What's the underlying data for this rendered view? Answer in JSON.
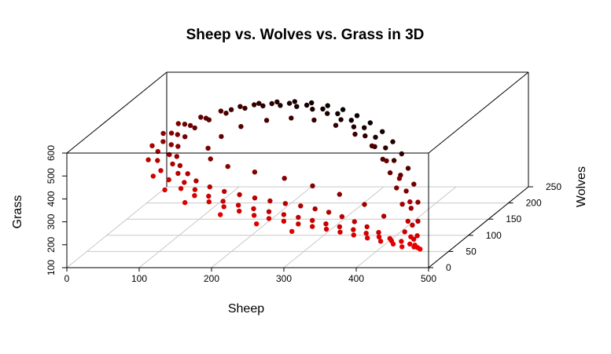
{
  "chart_data": {
    "type": "scatter",
    "title": "Sheep vs. Wolves vs. Grass in 3D",
    "xlabel": "Sheep",
    "ylabel": "Wolves",
    "zlabel": "Grass",
    "xlim": [
      0,
      500
    ],
    "ylim": [
      0,
      250
    ],
    "zlim": [
      100,
      600
    ],
    "x_ticks": [
      "0",
      "100",
      "200",
      "300",
      "400",
      "500"
    ],
    "y_ticks": [
      "0",
      "50",
      "100",
      "150",
      "200",
      "250"
    ],
    "z_ticks": [
      "100",
      "200",
      "300",
      "400",
      "500",
      "600"
    ],
    "grid": true,
    "color_encoding": "wolves",
    "color_low": "#ff0000",
    "color_high": "#000000",
    "series": [
      {
        "points": [
          [
            470,
            20,
            170
          ],
          [
            455,
            15,
            170
          ],
          [
            440,
            20,
            175
          ],
          [
            420,
            25,
            180
          ],
          [
            400,
            28,
            190
          ],
          [
            380,
            30,
            200
          ],
          [
            360,
            32,
            210
          ],
          [
            340,
            34,
            220
          ],
          [
            320,
            35,
            230
          ],
          [
            300,
            36,
            240
          ],
          [
            280,
            36,
            252
          ],
          [
            260,
            35,
            265
          ],
          [
            240,
            34,
            280
          ],
          [
            220,
            33,
            300
          ],
          [
            200,
            31,
            322
          ],
          [
            180,
            30,
            345
          ],
          [
            160,
            30,
            372
          ],
          [
            140,
            32,
            400
          ],
          [
            120,
            38,
            430
          ],
          [
            105,
            45,
            460
          ],
          [
            95,
            55,
            490
          ],
          [
            90,
            65,
            515
          ],
          [
            90,
            78,
            540
          ],
          [
            95,
            90,
            560
          ],
          [
            105,
            105,
            578
          ],
          [
            120,
            118,
            590
          ],
          [
            140,
            132,
            597
          ],
          [
            160,
            144,
            600
          ],
          [
            180,
            155,
            598
          ],
          [
            200,
            164,
            592
          ],
          [
            220,
            172,
            582
          ],
          [
            240,
            178,
            568
          ],
          [
            260,
            182,
            550
          ],
          [
            280,
            184,
            530
          ],
          [
            300,
            183,
            505
          ],
          [
            320,
            180,
            478
          ],
          [
            340,
            174,
            448
          ],
          [
            360,
            164,
            418
          ],
          [
            380,
            150,
            385
          ],
          [
            400,
            130,
            350
          ],
          [
            420,
            108,
            312
          ],
          [
            440,
            82,
            270
          ],
          [
            455,
            55,
            225
          ],
          [
            465,
            35,
            190
          ],
          [
            430,
            30,
            185
          ],
          [
            410,
            38,
            200
          ],
          [
            390,
            45,
            215
          ],
          [
            370,
            50,
            230
          ],
          [
            350,
            55,
            245
          ],
          [
            330,
            58,
            260
          ],
          [
            310,
            60,
            272
          ],
          [
            290,
            60,
            285
          ],
          [
            270,
            58,
            298
          ],
          [
            250,
            56,
            312
          ],
          [
            230,
            54,
            328
          ],
          [
            210,
            52,
            345
          ],
          [
            190,
            50,
            362
          ],
          [
            170,
            50,
            382
          ],
          [
            150,
            52,
            405
          ],
          [
            135,
            58,
            428
          ],
          [
            120,
            66,
            452
          ],
          [
            110,
            76,
            478
          ],
          [
            105,
            88,
            505
          ],
          [
            108,
            100,
            530
          ],
          [
            115,
            112,
            552
          ],
          [
            128,
            124,
            570
          ],
          [
            145,
            136,
            582
          ],
          [
            165,
            147,
            588
          ],
          [
            185,
            156,
            586
          ],
          [
            205,
            163,
            578
          ],
          [
            225,
            168,
            566
          ],
          [
            245,
            171,
            550
          ],
          [
            265,
            172,
            530
          ],
          [
            285,
            170,
            506
          ],
          [
            305,
            166,
            480
          ],
          [
            325,
            158,
            452
          ],
          [
            345,
            146,
            422
          ],
          [
            365,
            130,
            390
          ],
          [
            385,
            112,
            356
          ],
          [
            405,
            92,
            318
          ],
          [
            425,
            70,
            278
          ],
          [
            445,
            48,
            235
          ],
          [
            460,
            28,
            195
          ],
          [
            470,
            18,
            165
          ],
          [
            462,
            22,
            172
          ],
          [
            448,
            26,
            178
          ],
          [
            435,
            25,
            182
          ],
          [
            415,
            30,
            192
          ],
          [
            395,
            34,
            202
          ],
          [
            375,
            38,
            212
          ],
          [
            355,
            40,
            222
          ],
          [
            335,
            42,
            232
          ],
          [
            315,
            44,
            244
          ],
          [
            295,
            45,
            256
          ],
          [
            275,
            45,
            268
          ],
          [
            255,
            44,
            282
          ],
          [
            235,
            42,
            298
          ],
          [
            215,
            40,
            316
          ],
          [
            195,
            38,
            336
          ],
          [
            175,
            38,
            358
          ],
          [
            155,
            40,
            384
          ],
          [
            138,
            44,
            410
          ],
          [
            125,
            52,
            438
          ],
          [
            112,
            62,
            465
          ],
          [
            102,
            72,
            492
          ],
          [
            98,
            84,
            518
          ],
          [
            100,
            96,
            545
          ],
          [
            110,
            110,
            565
          ],
          [
            125,
            122,
            580
          ],
          [
            150,
            140,
            592
          ],
          [
            175,
            152,
            596
          ],
          [
            195,
            160,
            590
          ],
          [
            215,
            168,
            580
          ],
          [
            235,
            175,
            562
          ],
          [
            255,
            179,
            540
          ],
          [
            275,
            180,
            518
          ],
          [
            295,
            178,
            492
          ],
          [
            315,
            174,
            465
          ],
          [
            335,
            166,
            435
          ],
          [
            355,
            155,
            404
          ],
          [
            375,
            140,
            370
          ],
          [
            395,
            120,
            334
          ],
          [
            415,
            98,
            296
          ],
          [
            435,
            74,
            255
          ],
          [
            450,
            50,
            215
          ],
          [
            463,
            30,
            182
          ],
          [
            480,
            15,
            160
          ],
          [
            475,
            18,
            162
          ],
          [
            445,
            40,
            200
          ],
          [
            405,
            60,
            240
          ],
          [
            370,
            75,
            270
          ],
          [
            330,
            85,
            300
          ],
          [
            290,
            90,
            330
          ],
          [
            250,
            92,
            360
          ],
          [
            210,
            90,
            390
          ],
          [
            175,
            86,
            420
          ],
          [
            150,
            88,
            450
          ],
          [
            140,
            100,
            480
          ],
          [
            150,
            115,
            510
          ],
          [
            170,
            128,
            535
          ],
          [
            200,
            138,
            548
          ],
          [
            230,
            145,
            548
          ],
          [
            260,
            148,
            535
          ],
          [
            290,
            148,
            512
          ],
          [
            320,
            142,
            482
          ],
          [
            350,
            130,
            448
          ],
          [
            380,
            112,
            408
          ],
          [
            410,
            90,
            362
          ],
          [
            440,
            62,
            300
          ],
          [
            300,
            20,
            230
          ],
          [
            250,
            22,
            260
          ],
          [
            200,
            22,
            300
          ],
          [
            150,
            24,
            350
          ],
          [
            120,
            28,
            400
          ],
          [
            100,
            35,
            450
          ],
          [
            85,
            50,
            500
          ],
          [
            82,
            65,
            540
          ],
          [
            88,
            82,
            570
          ],
          [
            100,
            98,
            590
          ]
        ]
      }
    ]
  }
}
